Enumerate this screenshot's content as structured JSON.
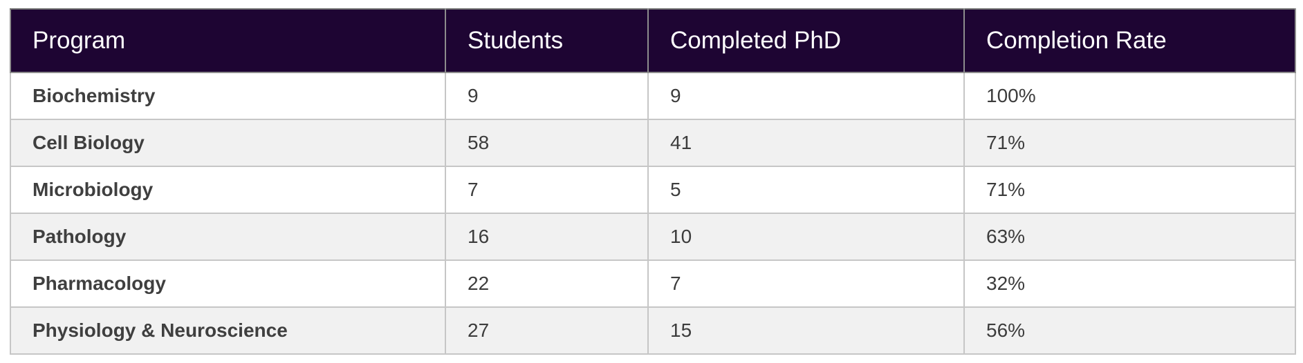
{
  "table": {
    "headers": [
      "Program",
      "Students",
      "Completed PhD",
      "Completion Rate"
    ],
    "rows": [
      {
        "program": "Biochemistry",
        "students": "9",
        "completed": "9",
        "rate": "100%"
      },
      {
        "program": "Cell Biology",
        "students": "58",
        "completed": "41",
        "rate": "71%"
      },
      {
        "program": "Microbiology",
        "students": "7",
        "completed": "5",
        "rate": "71%"
      },
      {
        "program": "Pathology",
        "students": "16",
        "completed": "10",
        "rate": "63%"
      },
      {
        "program": "Pharmacology",
        "students": "22",
        "completed": "7",
        "rate": "32%"
      },
      {
        "program": "Physiology & Neuroscience",
        "students": "27",
        "completed": "15",
        "rate": "56%"
      }
    ]
  },
  "colors": {
    "header_bg": "#1e0533",
    "header_text": "#ffffff",
    "row_alt_bg": "#f1f1f1",
    "row_bg": "#ffffff",
    "text": "#3c3c3c"
  }
}
